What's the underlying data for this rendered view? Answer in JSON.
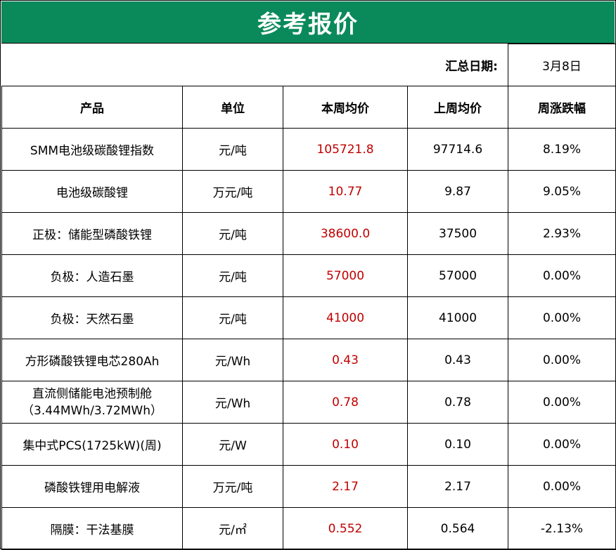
{
  "title": "参考报价",
  "summary": {
    "date_label": "汇总日期:",
    "date_value": "3月8日"
  },
  "columns": [
    "产品",
    "单位",
    "本周均价",
    "上周均价",
    "周涨跌幅"
  ],
  "rows": [
    {
      "product": "SMM电池级碳酸锂指数",
      "unit": "元/吨",
      "this_week": "105721.8",
      "last_week": "97714.6",
      "change": "8.19%"
    },
    {
      "product": "电池级碳酸锂",
      "unit": "万元/吨",
      "this_week": "10.77",
      "last_week": "9.87",
      "change": "9.05%"
    },
    {
      "product": "正极：储能型磷酸铁锂",
      "unit": "元/吨",
      "this_week": "38600.0",
      "last_week": "37500",
      "change": "2.93%"
    },
    {
      "product": "负极：人造石墨",
      "unit": "元/吨",
      "this_week": "57000",
      "last_week": "57000",
      "change": "0.00%"
    },
    {
      "product": "负极：天然石墨",
      "unit": "元/吨",
      "this_week": "41000",
      "last_week": "41000",
      "change": "0.00%"
    },
    {
      "product": "方形磷酸铁锂电芯280Ah",
      "unit": "元/Wh",
      "this_week": "0.43",
      "last_week": "0.43",
      "change": "0.00%"
    },
    {
      "product": "直流侧储能电池预制舱",
      "product_line2": "（3.44MWh/3.72MWh）",
      "unit": "元/Wh",
      "this_week": "0.78",
      "last_week": "0.78",
      "change": "0.00%"
    },
    {
      "product": "集中式PCS(1725kW)(周)",
      "unit": "元/W",
      "this_week": "0.10",
      "last_week": "0.10",
      "change": "0.00%"
    },
    {
      "product": "磷酸铁锂用电解液",
      "unit": "万元/吨",
      "this_week": "2.17",
      "last_week": "2.17",
      "change": "0.00%"
    },
    {
      "product": "隔膜：干法基膜",
      "unit": "元/㎡",
      "this_week": "0.552",
      "last_week": "0.564",
      "change": "-2.13%"
    }
  ],
  "colors": {
    "header_bg": "#0a8a5a",
    "header_text": "#ffffff",
    "this_week_text": "#c00000"
  }
}
